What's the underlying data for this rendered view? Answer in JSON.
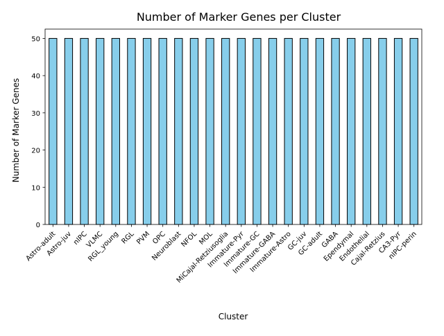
{
  "chart_data": {
    "type": "bar",
    "title": "Number of Marker Genes per Cluster",
    "xlabel": "Cluster",
    "ylabel": "Number of Marker Genes",
    "categories": [
      "Astro-adult",
      "Astro-juv",
      "nIPC",
      "VLMC",
      "RGL_young",
      "RGL",
      "PVM",
      "OPC",
      "Neuroblast",
      "NFOL",
      "MOL",
      "MiCajal-Retziusoglia",
      "Immature-Pyr",
      "Immature-GC",
      "Immature-GABA",
      "Immature-Astro",
      "GC-juv",
      "GC-adult",
      "GABA",
      "Ependymal",
      "Endothelial",
      "Cajal-Retzius",
      "CA3-Pyr",
      "nIPC-perin"
    ],
    "values": [
      50,
      50,
      50,
      50,
      50,
      50,
      50,
      50,
      50,
      50,
      50,
      50,
      50,
      50,
      50,
      50,
      50,
      50,
      50,
      50,
      50,
      50,
      50,
      50
    ],
    "yticks": [
      0,
      10,
      20,
      30,
      40,
      50
    ],
    "ylim": [
      0,
      52.5
    ],
    "grid": false,
    "bar_color": "#87ceeb",
    "edge_color": "#000000"
  }
}
